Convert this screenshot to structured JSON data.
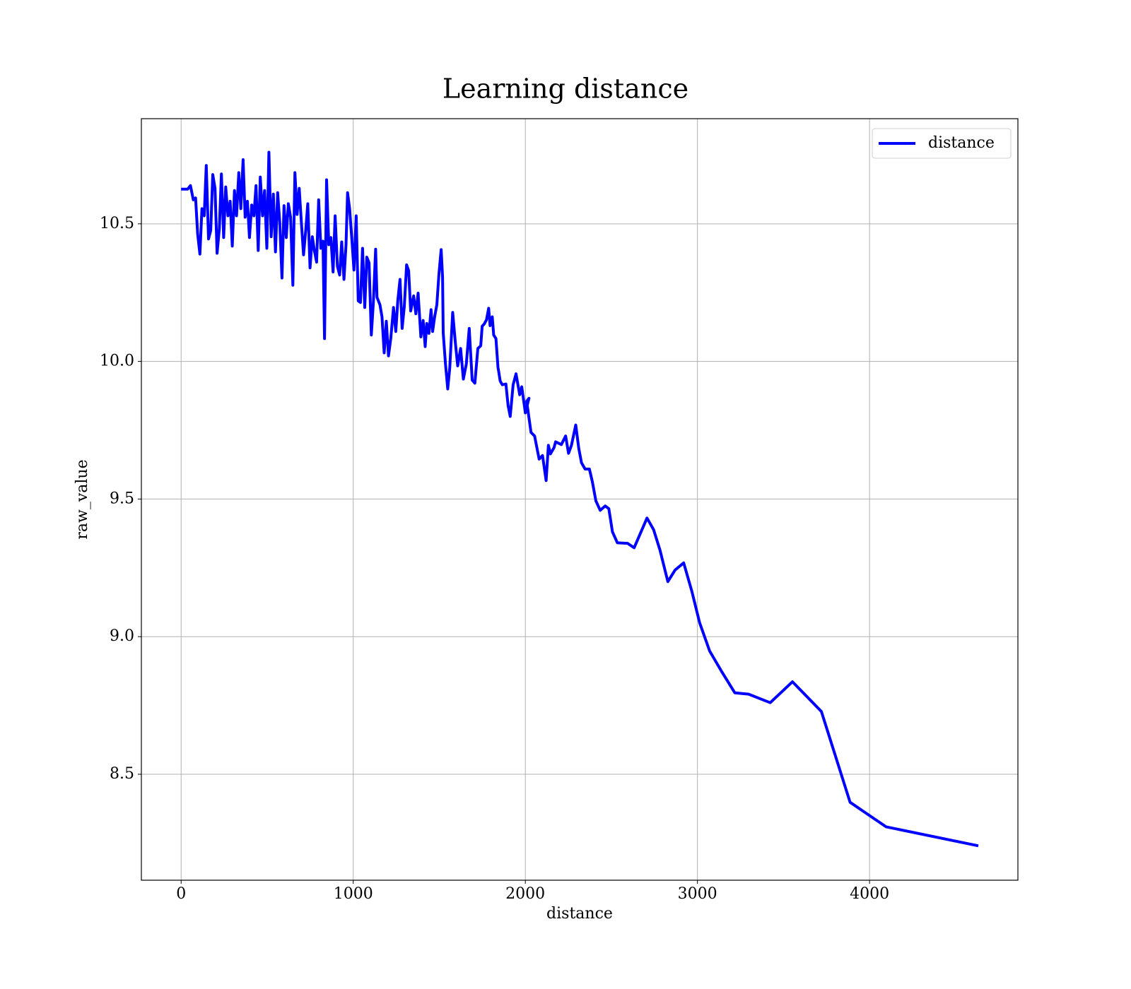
{
  "chart_data": {
    "type": "line",
    "title": "Learning distance",
    "xlabel": "distance",
    "ylabel": "raw_value",
    "x": [
      0,
      38,
      54,
      71,
      84,
      96,
      109,
      121,
      134,
      146,
      159,
      172,
      184,
      197,
      209,
      222,
      234,
      247,
      259,
      272,
      285,
      297,
      310,
      322,
      335,
      347,
      360,
      372,
      385,
      397,
      410,
      423,
      435,
      448,
      460,
      473,
      485,
      498,
      510,
      523,
      536,
      548,
      561,
      573,
      586,
      598,
      611,
      623,
      636,
      649,
      661,
      674,
      686,
      699,
      711,
      724,
      736,
      749,
      762,
      774,
      787,
      799,
      812,
      824,
      833,
      845,
      858,
      870,
      883,
      895,
      908,
      921,
      933,
      946,
      958,
      967,
      979,
      992,
      1004,
      1017,
      1029,
      1042,
      1054,
      1067,
      1079,
      1092,
      1105,
      1117,
      1130,
      1138,
      1155,
      1167,
      1180,
      1192,
      1205,
      1218,
      1234,
      1247,
      1259,
      1272,
      1284,
      1297,
      1310,
      1322,
      1334,
      1351,
      1364,
      1377,
      1393,
      1406,
      1418,
      1427,
      1440,
      1452,
      1461,
      1473,
      1486,
      1498,
      1511,
      1519,
      1523,
      1536,
      1549,
      1561,
      1578,
      1594,
      1607,
      1624,
      1640,
      1657,
      1674,
      1691,
      1707,
      1724,
      1741,
      1749,
      1761,
      1774,
      1787,
      1795,
      1808,
      1816,
      1829,
      1841,
      1845,
      1854,
      1866,
      1887,
      1900,
      1912,
      1929,
      1946,
      1967,
      1979,
      2000,
      2021,
      2008,
      2033,
      2054,
      2080,
      2100,
      2121,
      2134,
      2146,
      2167,
      2176,
      2209,
      2234,
      2251,
      2268,
      2293,
      2310,
      2326,
      2347,
      2372,
      2389,
      2410,
      2435,
      2464,
      2485,
      2506,
      2535,
      2594,
      2632,
      2707,
      2745,
      2782,
      2828,
      2870,
      2920,
      2967,
      3013,
      3071,
      3142,
      3217,
      3297,
      3423,
      3552,
      3720,
      3887,
      4096,
      4632
    ],
    "series": [
      {
        "name": "distance",
        "color": "#0000ff",
        "values": [
          10.626,
          10.626,
          10.639,
          10.587,
          10.594,
          10.463,
          10.39,
          10.555,
          10.529,
          10.712,
          10.445,
          10.476,
          10.679,
          10.629,
          10.393,
          10.482,
          10.681,
          10.45,
          10.634,
          10.529,
          10.582,
          10.419,
          10.621,
          10.529,
          10.686,
          10.555,
          10.733,
          10.524,
          10.582,
          10.45,
          10.568,
          10.529,
          10.639,
          10.403,
          10.67,
          10.529,
          10.621,
          10.411,
          10.76,
          10.453,
          10.608,
          10.398,
          10.613,
          10.503,
          10.303,
          10.566,
          10.45,
          10.573,
          10.524,
          10.277,
          10.686,
          10.534,
          10.629,
          10.503,
          10.387,
          10.476,
          10.573,
          10.34,
          10.453,
          10.403,
          10.361,
          10.587,
          10.411,
          10.437,
          10.083,
          10.66,
          10.424,
          10.45,
          10.325,
          10.529,
          10.346,
          10.314,
          10.434,
          10.298,
          10.424,
          10.613,
          10.555,
          10.442,
          10.332,
          10.529,
          10.22,
          10.214,
          10.411,
          10.196,
          10.379,
          10.358,
          10.096,
          10.214,
          10.408,
          10.233,
          10.206,
          10.162,
          10.031,
          10.146,
          10.02,
          10.083,
          10.196,
          10.109,
          10.222,
          10.298,
          10.12,
          10.201,
          10.351,
          10.33,
          10.183,
          10.238,
          10.173,
          10.248,
          10.089,
          10.149,
          10.054,
          10.138,
          10.102,
          10.188,
          10.109,
          10.162,
          10.206,
          10.319,
          10.406,
          10.306,
          10.104,
          9.991,
          9.9,
          9.978,
          10.178,
          10.065,
          9.984,
          10.047,
          9.936,
          9.991,
          10.12,
          9.932,
          9.921,
          10.047,
          10.057,
          10.128,
          10.136,
          10.151,
          10.193,
          10.13,
          10.162,
          10.096,
          10.083,
          9.978,
          9.965,
          9.929,
          9.915,
          9.918,
          9.839,
          9.8,
          9.915,
          9.955,
          9.879,
          9.908,
          9.813,
          9.866,
          9.855,
          9.742,
          9.729,
          9.645,
          9.658,
          9.567,
          9.695,
          9.664,
          9.687,
          9.708,
          9.698,
          9.729,
          9.666,
          9.695,
          9.769,
          9.685,
          9.632,
          9.609,
          9.609,
          9.564,
          9.493,
          9.459,
          9.475,
          9.465,
          9.381,
          9.341,
          9.339,
          9.323,
          9.431,
          9.389,
          9.315,
          9.2,
          9.242,
          9.268,
          9.166,
          9.05,
          8.948,
          8.872,
          8.796,
          8.791,
          8.76,
          8.836,
          8.728,
          8.398,
          8.309,
          8.24
        ]
      }
    ],
    "xlim": [
      -231,
      4862
    ],
    "ylim": [
      8.115,
      10.882
    ],
    "xticks": [
      0,
      1000,
      2000,
      3000,
      4000
    ],
    "yticks": [
      8.5,
      {
        "value": 9,
        "label": "9.0"
      },
      9.5,
      {
        "value": 10,
        "label": "10.0"
      },
      10.5
    ],
    "grid": true,
    "legend": "upper right"
  }
}
